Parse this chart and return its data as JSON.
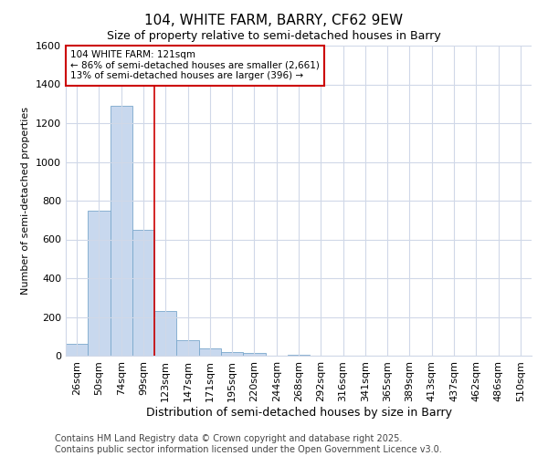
{
  "title": "104, WHITE FARM, BARRY, CF62 9EW",
  "subtitle": "Size of property relative to semi-detached houses in Barry",
  "xlabel": "Distribution of semi-detached houses by size in Barry",
  "ylabel": "Number of semi-detached properties",
  "categories": [
    "26sqm",
    "50sqm",
    "74sqm",
    "99sqm",
    "123sqm",
    "147sqm",
    "171sqm",
    "195sqm",
    "220sqm",
    "244sqm",
    "268sqm",
    "292sqm",
    "316sqm",
    "341sqm",
    "365sqm",
    "389sqm",
    "413sqm",
    "437sqm",
    "462sqm",
    "486sqm",
    "510sqm"
  ],
  "values": [
    60,
    750,
    1290,
    650,
    230,
    80,
    40,
    20,
    15,
    0,
    5,
    0,
    0,
    0,
    0,
    0,
    0,
    0,
    0,
    0,
    0
  ],
  "bar_color": "#c8d8ee",
  "bar_edge_color": "#7aa8cc",
  "property_label": "104 WHITE FARM: 121sqm",
  "annotation_text_line1": "← 86% of semi-detached houses are smaller (2,661)",
  "annotation_text_line2": "13% of semi-detached houses are larger (396) →",
  "annotation_box_color": "#ffffff",
  "annotation_box_edge_color": "#cc0000",
  "vline_color": "#cc0000",
  "vline_pos": 3.5,
  "ylim": [
    0,
    1600
  ],
  "yticks": [
    0,
    200,
    400,
    600,
    800,
    1000,
    1200,
    1400,
    1600
  ],
  "background_color": "#ffffff",
  "plot_bg_color": "#ffffff",
  "grid_color": "#d0d8e8",
  "footer_line1": "Contains HM Land Registry data © Crown copyright and database right 2025.",
  "footer_line2": "Contains public sector information licensed under the Open Government Licence v3.0.",
  "title_fontsize": 11,
  "subtitle_fontsize": 9,
  "xlabel_fontsize": 9,
  "ylabel_fontsize": 8,
  "tick_fontsize": 8,
  "footer_fontsize": 7
}
